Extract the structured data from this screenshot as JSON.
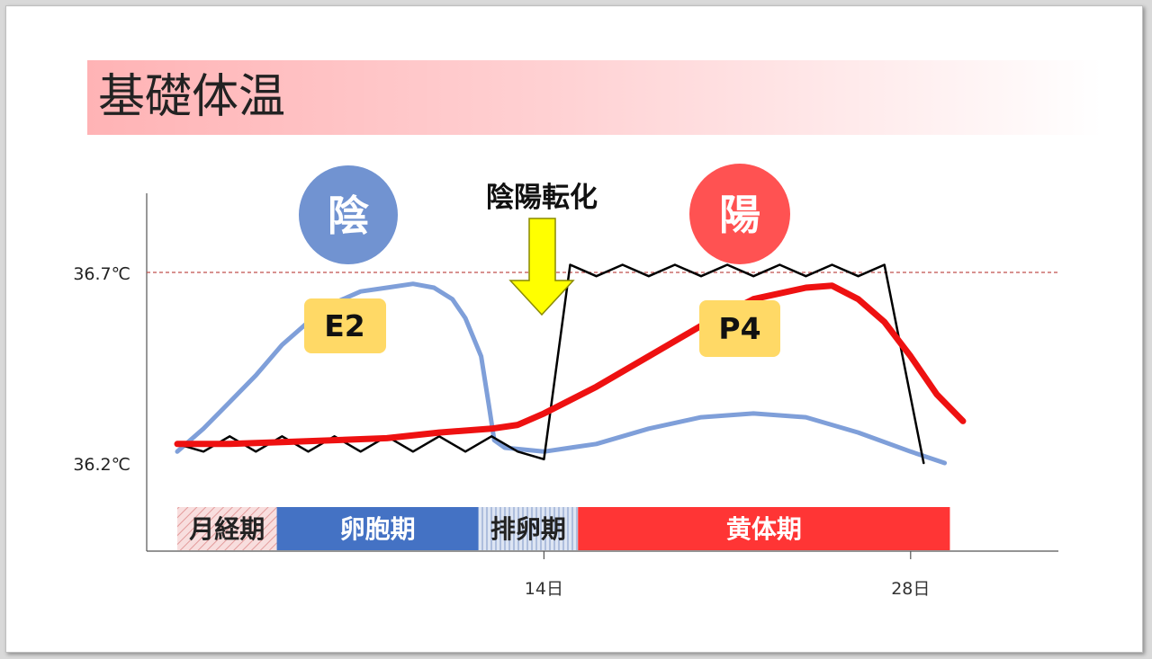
{
  "title": "基礎体温",
  "chart_data": {
    "type": "line",
    "title": "基礎体温",
    "xlabel": "",
    "ylabel": "",
    "xlim": [
      0,
      29.5
    ],
    "ylim": [
      36.0,
      36.9
    ],
    "x_ticks": [
      {
        "x": 14,
        "label": "14日"
      },
      {
        "x": 28,
        "label": "28日"
      }
    ],
    "y_ticks": [
      {
        "y": 36.7,
        "label": "36.7℃"
      },
      {
        "y": 36.2,
        "label": "36.2℃"
      }
    ],
    "reference_line": {
      "y": 36.7,
      "color": "#c0504d"
    },
    "series": [
      {
        "name": "E2",
        "color": "#7f9fd9",
        "points": [
          [
            0,
            36.23
          ],
          [
            1,
            36.29
          ],
          [
            2,
            36.36
          ],
          [
            3,
            36.43
          ],
          [
            4,
            36.51
          ],
          [
            5,
            36.57
          ],
          [
            6,
            36.62
          ],
          [
            7,
            36.65
          ],
          [
            8,
            36.66
          ],
          [
            9,
            36.67
          ],
          [
            9.8,
            36.66
          ],
          [
            10.5,
            36.63
          ],
          [
            11,
            36.58
          ],
          [
            11.6,
            36.48
          ],
          [
            11.9,
            36.35
          ],
          [
            12.1,
            36.26
          ],
          [
            12.5,
            36.24
          ],
          [
            14,
            36.23
          ],
          [
            16,
            36.25
          ],
          [
            18,
            36.29
          ],
          [
            20,
            36.32
          ],
          [
            22,
            36.33
          ],
          [
            24,
            36.32
          ],
          [
            26,
            36.28
          ],
          [
            28,
            36.23
          ],
          [
            29.3,
            36.2
          ]
        ]
      },
      {
        "name": "P4",
        "color": "#ee1111",
        "points": [
          [
            0,
            36.25
          ],
          [
            2,
            36.25
          ],
          [
            4,
            36.255
          ],
          [
            6,
            36.26
          ],
          [
            8,
            36.265
          ],
          [
            10,
            36.28
          ],
          [
            12,
            36.29
          ],
          [
            13,
            36.3
          ],
          [
            14,
            36.33
          ],
          [
            16,
            36.4
          ],
          [
            18,
            36.48
          ],
          [
            20,
            36.56
          ],
          [
            22,
            36.63
          ],
          [
            24,
            36.66
          ],
          [
            25,
            36.665
          ],
          [
            26,
            36.63
          ],
          [
            27,
            36.57
          ],
          [
            28,
            36.48
          ],
          [
            29,
            36.38
          ],
          [
            30,
            36.31
          ]
        ]
      },
      {
        "name": "",
        "color": "#000000",
        "points": [
          [
            0,
            36.25
          ],
          [
            1,
            36.23
          ],
          [
            2,
            36.27
          ],
          [
            3,
            36.23
          ],
          [
            4,
            36.27
          ],
          [
            5,
            36.23
          ],
          [
            6,
            36.27
          ],
          [
            7,
            36.23
          ],
          [
            8,
            36.27
          ],
          [
            9,
            36.23
          ],
          [
            10,
            36.27
          ],
          [
            11,
            36.23
          ],
          [
            12,
            36.27
          ],
          [
            13,
            36.23
          ],
          [
            14,
            36.21
          ],
          [
            15,
            36.72
          ],
          [
            16,
            36.69
          ],
          [
            17,
            36.72
          ],
          [
            18,
            36.69
          ],
          [
            19,
            36.72
          ],
          [
            20,
            36.69
          ],
          [
            21,
            36.72
          ],
          [
            22,
            36.69
          ],
          [
            23,
            36.72
          ],
          [
            24,
            36.69
          ],
          [
            25,
            36.72
          ],
          [
            26,
            36.69
          ],
          [
            27,
            36.72
          ],
          [
            28.5,
            36.2
          ]
        ]
      }
    ],
    "phases": [
      {
        "label": "月経期",
        "x0": 0,
        "x1": 3.8,
        "color": "#f3c7c7",
        "text_color": "#222222",
        "pattern": "hatch"
      },
      {
        "label": "卵胞期",
        "x0": 3.8,
        "x1": 11.5,
        "color": "#4472c4",
        "text_color": "#ffffff",
        "pattern": "solid"
      },
      {
        "label": "排卵期",
        "x0": 11.5,
        "x1": 15.3,
        "color": "#c9d5ea",
        "text_color": "#222222",
        "pattern": "stripe"
      },
      {
        "label": "黄体期",
        "x0": 15.3,
        "x1": 29.5,
        "color": "#ff3535",
        "text_color": "#ffffff",
        "pattern": "solid"
      }
    ],
    "annotations": {
      "yin": {
        "label": "陰",
        "color": "#7193d1"
      },
      "yang": {
        "label": "陽",
        "color": "#ff5252"
      },
      "transition": {
        "label": "陰陽転化",
        "arrow_color": "#ffff00"
      },
      "e2_label": "E2",
      "p4_label": "P4",
      "badge_color": "#ffd966"
    },
    "grid": false,
    "legend": "none"
  }
}
